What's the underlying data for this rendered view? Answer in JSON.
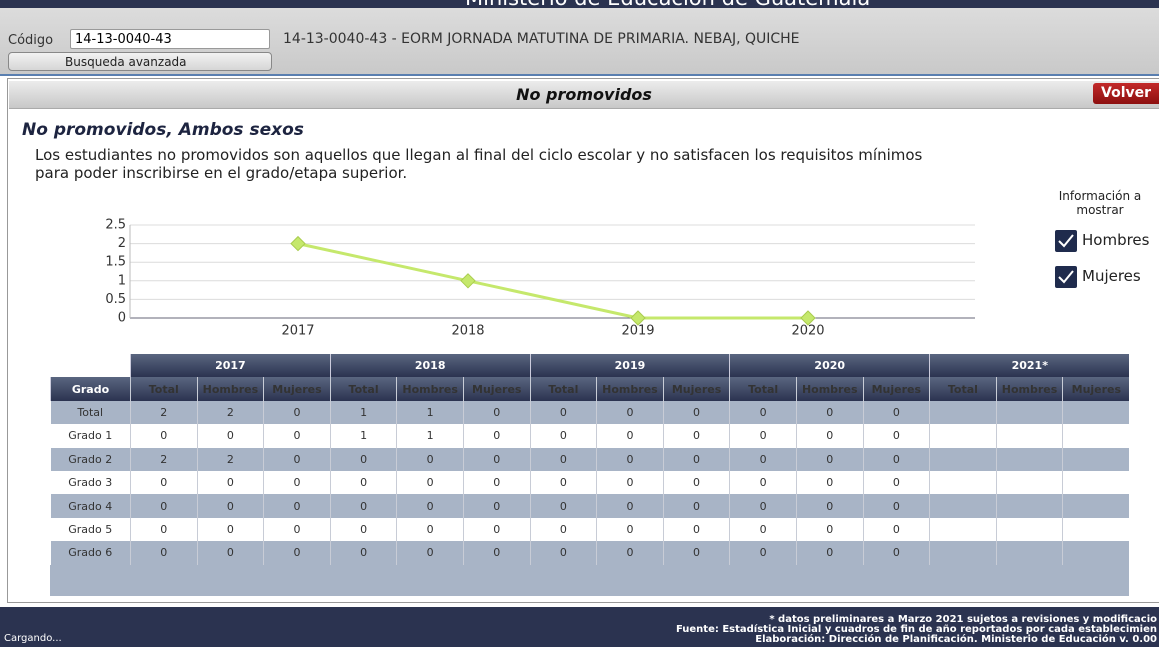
{
  "header": {
    "title": "Ministerio de Educación de Guatemala",
    "codigo_label": "Código",
    "codigo_value": "14-13-0040-43",
    "school": "14-13-0040-43 - EORM JORNADA MATUTINA DE PRIMARIA. NEBAJ, QUICHE",
    "advanced_search": "Busqueda avanzada"
  },
  "panel": {
    "title": "No promovidos",
    "back_button": "Volver",
    "heading": "No promovidos, Ambos sexos",
    "description": [
      "Los estudiantes no promovidos son aquellos que llegan al final del ciclo escolar y no satisfacen los requisitos mínimos",
      "para poder inscribirse en el grado/etapa superior."
    ]
  },
  "options": {
    "title": [
      "Información a",
      "mostrar"
    ],
    "checkboxes": [
      "Hombres",
      "Mujeres"
    ]
  },
  "chart_data": {
    "type": "line",
    "categories": [
      "2017",
      "2018",
      "2019",
      "2020"
    ],
    "values": [
      2,
      1,
      0,
      0
    ],
    "color": "#c5e86c",
    "ylim": [
      0,
      2.5
    ],
    "yticks": [
      0,
      0.5,
      1,
      1.5,
      2,
      2.5
    ],
    "grid": true
  },
  "table": {
    "grado_header": "Grado",
    "years": [
      "2017",
      "2018",
      "2019",
      "2020",
      "2021*"
    ],
    "subheaders": [
      "Total",
      "Hombres",
      "Mujeres"
    ],
    "rows": [
      [
        "Total",
        2,
        2,
        0,
        1,
        1,
        0,
        0,
        0,
        0,
        0,
        0,
        0
      ],
      [
        "Grado 1",
        0,
        0,
        0,
        1,
        1,
        0,
        0,
        0,
        0,
        0,
        0,
        0
      ],
      [
        "Grado 2",
        2,
        2,
        0,
        0,
        0,
        0,
        0,
        0,
        0,
        0,
        0,
        0
      ],
      [
        "Grado 3",
        0,
        0,
        0,
        0,
        0,
        0,
        0,
        0,
        0,
        0,
        0,
        0
      ],
      [
        "Grado 4",
        0,
        0,
        0,
        0,
        0,
        0,
        0,
        0,
        0,
        0,
        0,
        0
      ],
      [
        "Grado 5",
        0,
        0,
        0,
        0,
        0,
        0,
        0,
        0,
        0,
        0,
        0,
        0
      ],
      [
        "Grado 6",
        0,
        0,
        0,
        0,
        0,
        0,
        0,
        0,
        0,
        0,
        0,
        0
      ]
    ]
  },
  "footer": {
    "note": "* datos preliminares a Marzo 2021 sujetos a revisiones y modificacio",
    "source": "Fuente: Estadística Inicial y cuadros de fin de año reportados por cada establecimien",
    "credit": "Elaboración: Dirección de Planificación. Ministerio de Educación v. 0.00",
    "status": "Cargando..."
  }
}
